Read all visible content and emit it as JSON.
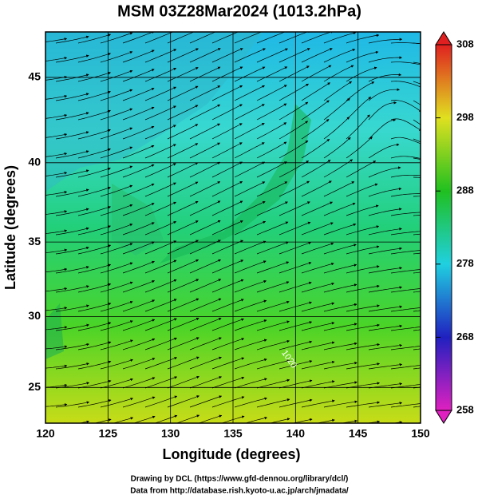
{
  "title": "MSM 03Z28Mar2024 (1013.2hPa)",
  "x_axis": {
    "label": "Longitude (degrees)",
    "lim": [
      120,
      150
    ],
    "ticks": [
      120,
      125,
      130,
      135,
      140,
      145,
      150
    ]
  },
  "y_axis": {
    "label": "Latitude  (degrees)",
    "lim": [
      22.4,
      47.5
    ],
    "ticks": [
      25,
      30,
      35,
      40,
      45
    ]
  },
  "colorbar": {
    "lim": [
      258,
      308
    ],
    "ticks": [
      258,
      268,
      278,
      288,
      298,
      308
    ]
  },
  "contour_labels": [
    "1020"
  ],
  "footer": [
    "Drawing by DCL (https://www.gfd-dennou.org/library/dcl/)",
    "Data from http://database.rish.kyoto-u.ac.jp/arch/jmadata/"
  ]
}
